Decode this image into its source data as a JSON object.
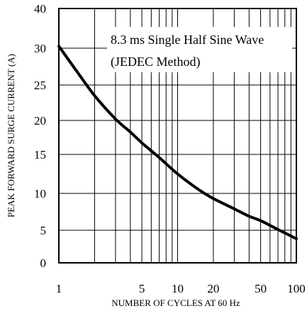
{
  "chart_data": {
    "type": "line",
    "title": "",
    "xlabel": "NUMBER OF CYCLES AT 60 Hz",
    "ylabel": "PEAK FORWARD SURGE CURRENT (A)",
    "xscale": "log",
    "xlim": [
      1,
      100
    ],
    "ylim": [
      0,
      40
    ],
    "grid": true,
    "x_tick_labels": [
      "1",
      "5",
      "10",
      "20",
      "50",
      "100"
    ],
    "x_tick_values": [
      1,
      5,
      10,
      20,
      50,
      100
    ],
    "y_tick_labels": [
      "0",
      "5",
      "10",
      "15",
      "20",
      "25",
      "30",
      "40"
    ],
    "y_tick_values": [
      0,
      5,
      10,
      15,
      20,
      25,
      30,
      40
    ],
    "annotation": [
      "8.3 ms Single Half Sine Wave",
      "(JEDEC Method)"
    ],
    "annotation_position": "top-right",
    "series": [
      {
        "x": [
          1,
          1.5,
          2,
          3,
          4,
          5,
          7,
          10,
          15,
          20,
          30,
          40,
          50,
          70,
          100
        ],
        "values": [
          30.5,
          26.3,
          23.5,
          20.2,
          18.3,
          16.7,
          14.6,
          12.5,
          10.5,
          9.3,
          7.9,
          6.9,
          6.3,
          5.1,
          3.7
        ]
      }
    ]
  }
}
